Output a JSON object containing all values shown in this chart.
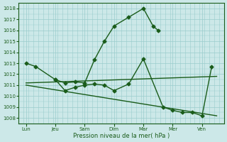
{
  "title": "",
  "xlabel": "Pression niveau de la mer( hPa )",
  "ylabel": "",
  "bg_color": "#cce8e8",
  "grid_color": "#99cccc",
  "line_color": "#1a5c1a",
  "ylim": [
    1007.5,
    1018.5
  ],
  "yticks": [
    1008,
    1009,
    1010,
    1011,
    1012,
    1013,
    1014,
    1015,
    1016,
    1017,
    1018
  ],
  "day_labels": [
    "Lun",
    "Jeu",
    "Sam",
    "Dim",
    "Mar",
    "Mer",
    "Ven"
  ],
  "day_positions": [
    0,
    1,
    2,
    3,
    4,
    5,
    6
  ],
  "xlim": [
    -0.15,
    6.6
  ],
  "series1_x": [
    0,
    0.33,
    1,
    1.33,
    1.67,
    2,
    2.33,
    2.67,
    3,
    3.5,
    4.0,
    4.33,
    4.5
  ],
  "series1_y": [
    1013.0,
    1012.7,
    1011.5,
    1011.2,
    1011.3,
    1011.2,
    1013.3,
    1015.0,
    1016.4,
    1017.2,
    1018.0,
    1016.4,
    1016.0
  ],
  "series2_x": [
    1,
    1.33,
    1.67,
    2,
    2.33,
    2.67,
    3.0,
    3.5,
    4.0,
    4.67,
    5.0,
    5.33,
    5.67,
    6.0,
    6.33
  ],
  "series2_y": [
    1011.5,
    1010.5,
    1010.8,
    1011.0,
    1011.1,
    1011.0,
    1010.5,
    1011.1,
    1013.4,
    1009.0,
    1008.7,
    1008.5,
    1008.5,
    1008.2,
    1012.7
  ],
  "trend1_x": [
    0,
    6.5
  ],
  "trend1_y": [
    1011.2,
    1011.8
  ],
  "trend2_x": [
    0,
    6.5
  ],
  "trend2_y": [
    1011.0,
    1008.2
  ],
  "marker_size": 2.5,
  "line_width": 1.0
}
